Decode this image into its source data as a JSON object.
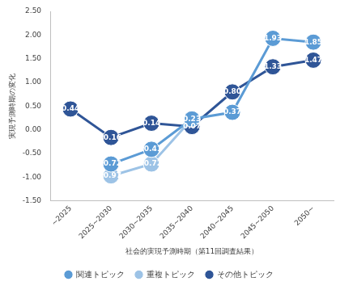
{
  "chart_data": {
    "type": "line",
    "x_label": "社会的実現予測時期（第11回調査結果）",
    "y_label": "実現予測時期の変化",
    "categories": [
      "~2025",
      "2025~2030",
      "2030~2035",
      "2035~2040",
      "2040~2045",
      "2045~2050",
      "2050~"
    ],
    "series": [
      {
        "name": "関連トピック",
        "color": "#5b9bd5",
        "values": [
          null,
          -0.72,
          -0.41,
          0.23,
          0.37,
          1.93,
          1.85
        ]
      },
      {
        "name": "重複トピック",
        "color": "#9dc3e6",
        "values": [
          null,
          -0.97,
          -0.72,
          0.23,
          null,
          null,
          null
        ]
      },
      {
        "name": "その他トピック",
        "color": "#2f5597",
        "values": [
          0.44,
          -0.16,
          0.14,
          0.07,
          0.8,
          1.33,
          1.47
        ]
      }
    ],
    "ylim": [
      -1.5,
      2.5
    ],
    "yticks": [
      {
        "value": -1.5,
        "label": "-1.50"
      },
      {
        "value": -1.0,
        "label": "-1.00"
      },
      {
        "value": -0.5,
        "label": "-0.50"
      },
      {
        "value": 0,
        "label": "0.00"
      },
      {
        "value": 0.5,
        "label": "0.50"
      },
      {
        "value": 1.0,
        "label": "1.00"
      },
      {
        "value": 1.5,
        "label": "1.50"
      },
      {
        "value": 2.0,
        "label": "2.00"
      },
      {
        "value": 2.5,
        "label": "2.50"
      }
    ],
    "grid": false,
    "legend": "bottom",
    "marker": "circle",
    "data_labels": true
  }
}
